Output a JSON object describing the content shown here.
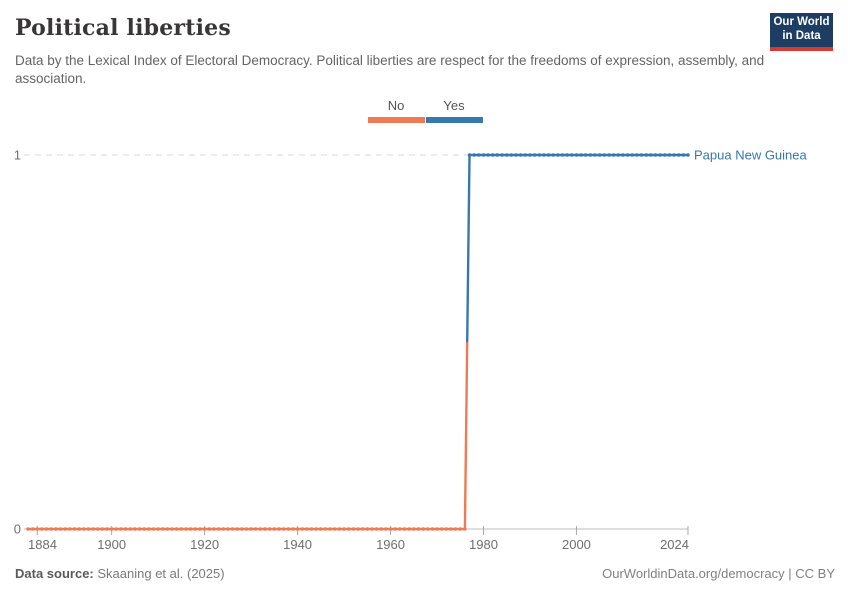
{
  "header": {
    "title": "Political liberties",
    "subtitle": "Data by the Lexical Index of Electoral Democracy. Political liberties are respect for the freedoms of expression, assembly, and association.",
    "logo": {
      "line1": "Our World",
      "line2": "in Data",
      "bg_color": "#1d3d63",
      "accent_color": "#d53a35"
    }
  },
  "legend": {
    "items": [
      {
        "label": "No",
        "color": "#ee7b55"
      },
      {
        "label": "Yes",
        "color": "#3778ae"
      }
    ]
  },
  "chart_data": {
    "type": "line",
    "title": "Political liberties",
    "entity": "Papua New Guinea",
    "series": [
      {
        "name": "Papua New Guinea",
        "step_points": [
          {
            "year": 1882,
            "value": 0
          },
          {
            "year": 1976,
            "value": 0
          },
          {
            "year": 1977,
            "value": 1
          },
          {
            "year": 2024,
            "value": 1
          }
        ]
      }
    ],
    "value_labels": {
      "0": "No",
      "1": "Yes"
    },
    "value_colors": {
      "0": "#ee7b55",
      "1": "#3778ae"
    },
    "entity_label_color": "#3578ad",
    "x_ticks": [
      1884,
      1900,
      1920,
      1940,
      1960,
      1980,
      2000,
      2024
    ],
    "y_ticks": [
      0,
      1
    ],
    "xlim": [
      1882,
      2024
    ],
    "ylim": [
      0,
      1
    ],
    "grid": "dashed horizontal gridline at y=1, solid baseline at y=0",
    "legend_position": "top-center",
    "axis_text_color": "#6e6e6e",
    "grid_color": "#d9d9d9",
    "axis_line_color": "#bcbcbc",
    "tick_color": "#a8a8a8"
  },
  "footer": {
    "source_label": "Data source:",
    "source_value": "Skaaning et al. (2025)",
    "right_text": "OurWorldinData.org/democracy | CC BY"
  }
}
